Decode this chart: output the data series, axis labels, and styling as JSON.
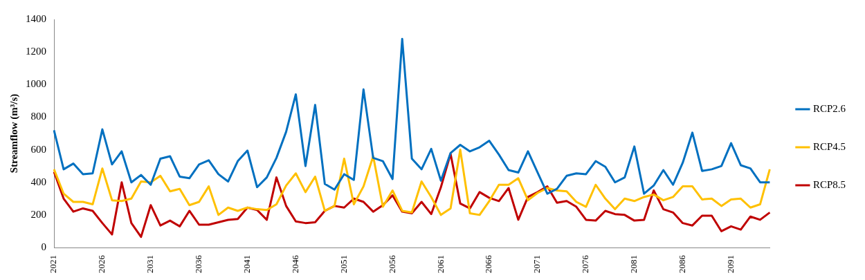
{
  "chart_data": {
    "type": "line",
    "ylabel": "Streamflow (m³/s)",
    "categories": [
      "2021",
      null,
      null,
      null,
      null,
      "2026",
      null,
      null,
      null,
      null,
      "2031",
      null,
      null,
      null,
      null,
      "2036",
      null,
      null,
      null,
      null,
      "2041",
      null,
      null,
      null,
      null,
      "2046",
      null,
      null,
      null,
      null,
      "2051",
      null,
      null,
      null,
      null,
      "2056",
      null,
      null,
      null,
      null,
      "2061",
      null,
      null,
      null,
      null,
      "2066",
      null,
      null,
      null,
      null,
      "2071",
      null,
      null,
      null,
      null,
      "2076",
      null,
      null,
      null,
      null,
      "2081",
      null,
      null,
      null,
      null,
      "2086",
      null,
      null,
      null,
      null,
      "2091",
      null,
      null,
      null,
      null
    ],
    "series": [
      {
        "name": "RCP2.6",
        "color": "#0070c0",
        "values": [
          720,
          480,
          515,
          450,
          455,
          725,
          510,
          590,
          400,
          445,
          385,
          545,
          560,
          435,
          425,
          510,
          535,
          450,
          405,
          530,
          595,
          370,
          430,
          550,
          710,
          940,
          500,
          875,
          390,
          355,
          450,
          415,
          970,
          550,
          530,
          420,
          1280,
          545,
          480,
          605,
          410,
          580,
          630,
          590,
          615,
          655,
          570,
          475,
          460,
          590,
          460,
          330,
          360,
          440,
          455,
          450,
          530,
          495,
          400,
          430,
          620,
          330,
          380,
          475,
          385,
          520,
          705,
          470,
          480,
          500,
          640,
          505,
          485,
          400,
          400
        ]
      },
      {
        "name": "RCP4.5",
        "color": "#ffc000",
        "values": [
          480,
          330,
          280,
          280,
          265,
          485,
          290,
          285,
          300,
          405,
          400,
          440,
          345,
          360,
          260,
          280,
          375,
          200,
          245,
          225,
          245,
          235,
          230,
          265,
          380,
          455,
          340,
          435,
          225,
          255,
          545,
          265,
          375,
          560,
          250,
          350,
          225,
          215,
          405,
          310,
          200,
          240,
          600,
          210,
          200,
          285,
          385,
          385,
          425,
          290,
          335,
          365,
          350,
          345,
          280,
          250,
          385,
          300,
          235,
          300,
          285,
          310,
          325,
          290,
          310,
          375,
          375,
          295,
          300,
          255,
          295,
          300,
          245,
          265,
          480
        ]
      },
      {
        "name": "RCP8.5",
        "color": "#c00000",
        "values": [
          465,
          300,
          220,
          240,
          225,
          150,
          80,
          400,
          150,
          65,
          260,
          135,
          165,
          130,
          225,
          140,
          140,
          155,
          170,
          175,
          245,
          230,
          170,
          430,
          255,
          160,
          150,
          155,
          225,
          255,
          245,
          300,
          280,
          220,
          260,
          320,
          220,
          210,
          280,
          205,
          370,
          575,
          270,
          240,
          340,
          305,
          285,
          365,
          170,
          310,
          340,
          375,
          275,
          285,
          250,
          170,
          165,
          225,
          205,
          200,
          165,
          170,
          350,
          235,
          215,
          150,
          135,
          195,
          195,
          100,
          130,
          110,
          190,
          170,
          215
        ]
      }
    ],
    "ylim": [
      0,
      1400
    ],
    "yticks": [
      0,
      200,
      400,
      600,
      800,
      1000,
      1200,
      1400
    ],
    "grid": false,
    "legend": "right"
  }
}
